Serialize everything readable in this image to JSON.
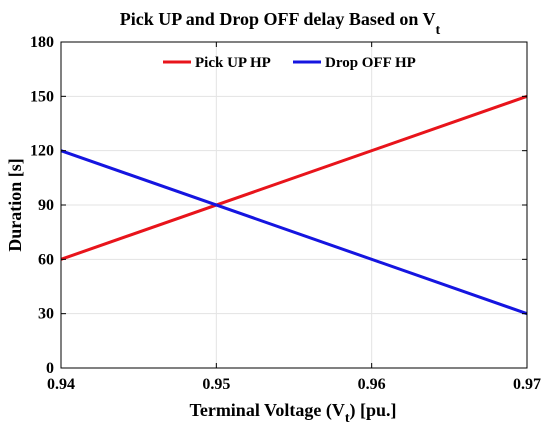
{
  "chart_data": {
    "type": "line",
    "title": "Pick UP and Drop OFF delay Based on V",
    "title_subscript": "t",
    "xlabel_prefix": "Terminal Voltage (V",
    "xlabel_subscript": "t",
    "xlabel_suffix": ") [pu.]",
    "ylabel": "Duration [s]",
    "xlim": [
      0.94,
      0.97
    ],
    "ylim": [
      0,
      180
    ],
    "xticks": [
      0.94,
      0.95,
      0.96,
      0.97
    ],
    "xtick_labels": [
      "0.94",
      "0.95",
      "0.96",
      "0.97"
    ],
    "yticks": [
      0,
      30,
      60,
      90,
      120,
      150,
      180
    ],
    "ytick_labels": [
      "0",
      "30",
      "60",
      "90",
      "120",
      "150",
      "180"
    ],
    "grid": true,
    "legend_position": "top-center",
    "series": [
      {
        "name": "Pick UP HP",
        "color": "#e8141b",
        "x": [
          0.94,
          0.97
        ],
        "y": [
          60,
          150
        ]
      },
      {
        "name": "Drop OFF HP",
        "color": "#1515e0",
        "x": [
          0.94,
          0.97
        ],
        "y": [
          120,
          30
        ]
      }
    ]
  }
}
